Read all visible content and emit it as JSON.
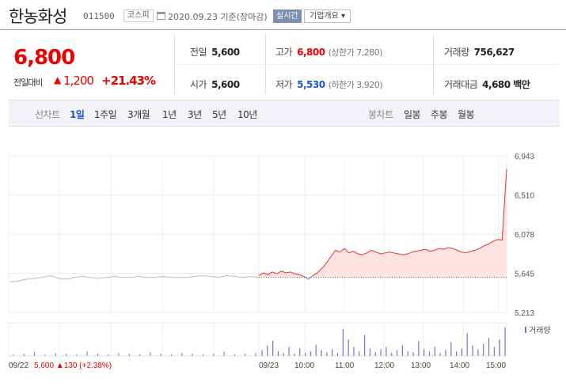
{
  "header": {
    "name": "한농화성",
    "code": "011500",
    "market": "코스피",
    "date": "2020.09.23 기준(장마감)",
    "realtime": "실시간",
    "company": "기업개요"
  },
  "quote": {
    "price": "6,800",
    "change_label": "전일대비",
    "change": "1,200",
    "change_pct": "+21.43%",
    "up_color": "#e00000",
    "down_color": "#1a55d8"
  },
  "summary": {
    "prev_label": "전일",
    "prev": "5,600",
    "open_label": "시가",
    "open": "5,600",
    "high_label": "고가",
    "high": "6,800",
    "upper_limit": "(상한가 7,280)",
    "low_label": "저가",
    "low": "5,530",
    "lower_limit": "(하한가 3,920)",
    "volume_label": "거래량",
    "volume": "756,627",
    "amount_label": "거래대금",
    "amount": "4,680 백만"
  },
  "periods": {
    "line_title": "선차트",
    "line_tabs": [
      "1일",
      "1주일",
      "3개월",
      "1년",
      "3년",
      "5년",
      "10년"
    ],
    "candle_title": "봉차트",
    "candle_tabs": [
      "일봉",
      "주봉",
      "월봉"
    ],
    "active": "1일"
  },
  "chart_data": {
    "type": "line",
    "y_ticks": [
      6943,
      6510,
      6078,
      5645,
      5213
    ],
    "ylim": [
      5213,
      6943
    ],
    "prev_close": 5600,
    "x_ticks": [
      "09/22",
      "09/23",
      "10:00",
      "11:00",
      "12:00",
      "13:00",
      "14:00",
      "15:00"
    ],
    "prev_day_series": [
      5550,
      5560,
      5580,
      5590,
      5600,
      5620,
      5590,
      5580,
      5600,
      5610,
      5600,
      5590,
      5600,
      5610,
      5600,
      5600,
      5610,
      5600,
      5600,
      5610,
      5600,
      5600,
      5600,
      5610,
      5620,
      5610,
      5600,
      5620,
      5610,
      5600,
      5610,
      5600
    ],
    "today_series": [
      5620,
      5650,
      5630,
      5660,
      5640,
      5670,
      5650,
      5660,
      5640,
      5630,
      5610,
      5580,
      5620,
      5650,
      5700,
      5760,
      5830,
      5900,
      5880,
      5920,
      5870,
      5890,
      5860,
      5850,
      5870,
      5900,
      5880,
      5860,
      5870,
      5880,
      5870,
      5860,
      5850,
      5860,
      5880,
      5890,
      5900,
      5910,
      5890,
      5900,
      5920,
      5910,
      5930,
      5920,
      5900,
      5880,
      5870,
      5890,
      5900,
      5920,
      5950,
      5970,
      6000,
      6020,
      6010,
      6800
    ],
    "prev_day_volume": [
      2,
      3,
      5,
      2,
      4,
      3,
      2,
      6,
      3,
      2,
      4,
      3,
      2,
      5,
      3,
      2,
      4,
      3,
      2,
      3,
      6,
      2,
      3,
      4
    ],
    "today_volume": [
      8,
      14,
      20,
      6,
      4,
      12,
      3,
      10,
      4,
      6,
      15,
      8,
      5,
      9,
      4,
      36,
      22,
      12,
      6,
      28,
      10,
      5,
      9,
      12,
      4,
      8,
      14,
      6,
      5,
      20,
      9,
      6,
      12,
      4,
      8,
      18,
      6,
      10,
      30,
      14,
      9,
      16,
      24,
      12,
      22,
      38
    ],
    "volume_label": "거래량",
    "summary_text": "09/22 5,600 ▲130 (+2.38%)",
    "line_color": "#e0352b",
    "fill_color": "#fde2e2",
    "prev_line_color": "#bbbbbb",
    "volume_color": "#7b72c9"
  }
}
